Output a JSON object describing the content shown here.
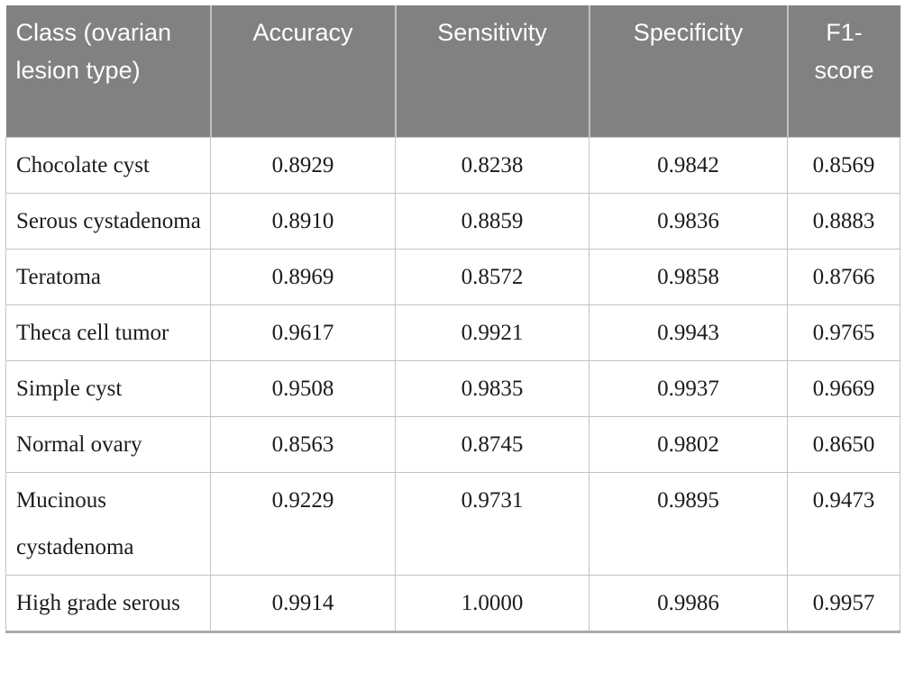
{
  "table": {
    "columns": [
      "Class (ovarian lesion type)",
      "Accuracy",
      "Sensitivity",
      "Specificity",
      "F1-score"
    ],
    "rows": [
      {
        "class": "Chocolate cyst",
        "accuracy": "0.8929",
        "sensitivity": "0.8238",
        "specificity": "0.9842",
        "f1": "0.8569"
      },
      {
        "class": "Serous cystadenoma",
        "accuracy": "0.8910",
        "sensitivity": "0.8859",
        "specificity": "0.9836",
        "f1": "0.8883"
      },
      {
        "class": "Teratoma",
        "accuracy": "0.8969",
        "sensitivity": "0.8572",
        "specificity": "0.9858",
        "f1": "0.8766"
      },
      {
        "class": "Theca cell tumor",
        "accuracy": "0.9617",
        "sensitivity": "0.9921",
        "specificity": "0.9943",
        "f1": "0.9765"
      },
      {
        "class": "Simple cyst",
        "accuracy": "0.9508",
        "sensitivity": "0.9835",
        "specificity": "0.9937",
        "f1": "0.9669"
      },
      {
        "class": "Normal ovary",
        "accuracy": "0.8563",
        "sensitivity": "0.8745",
        "specificity": "0.9802",
        "f1": "0.8650"
      },
      {
        "class": "Mucinous cystadenoma",
        "accuracy": "0.9229",
        "sensitivity": "0.9731",
        "specificity": "0.9895",
        "f1": "0.9473"
      },
      {
        "class": "High grade serous",
        "accuracy": "0.9914",
        "sensitivity": "1.0000",
        "specificity": "0.9986",
        "f1": "0.9957"
      }
    ]
  },
  "colors": {
    "header_bg": "#818181",
    "header_text": "#ffffff",
    "grid_border": "#c3c3c3",
    "bottom_rule": "#aaaaaa",
    "body_text": "#1c1c1c"
  }
}
